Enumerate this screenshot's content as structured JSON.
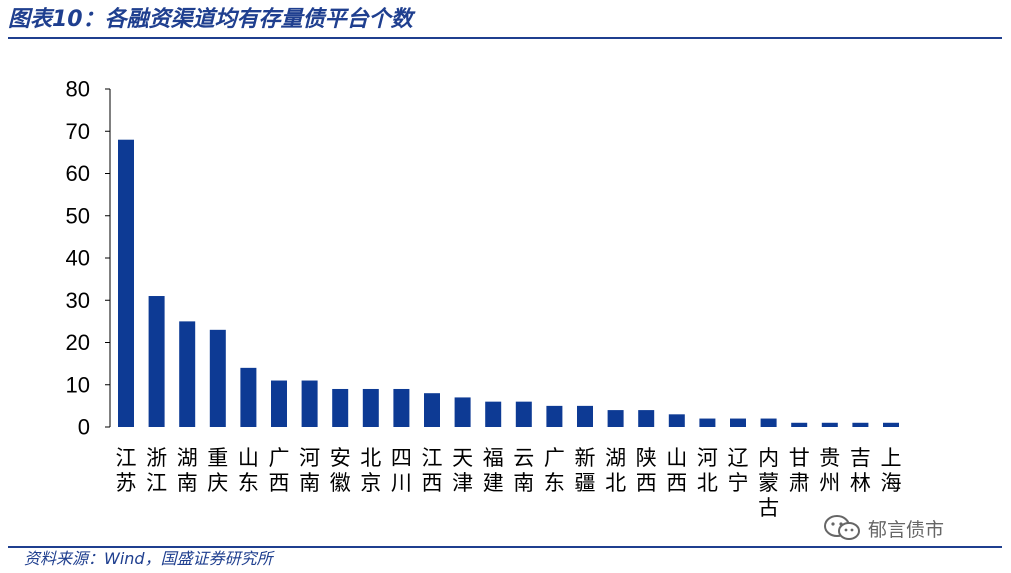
{
  "header": {
    "title": "图表10：各融资渠道均有存量债平台个数"
  },
  "footer": {
    "source": "资料来源：Wind，国盛证券研究所",
    "watermark": "郁言债市",
    "watermark_icon": "wechat-icon"
  },
  "colors": {
    "bar": "#0d3a94",
    "title": "#1f3f8f",
    "axis": "#000000"
  },
  "chart_data": {
    "type": "bar",
    "title": "",
    "xlabel": "",
    "ylabel": "",
    "ylim": [
      0,
      80
    ],
    "yticks": [
      0,
      10,
      20,
      30,
      40,
      50,
      60,
      70,
      80
    ],
    "grid": false,
    "legend": "none",
    "categories": [
      "江苏",
      "浙江",
      "湖南",
      "重庆",
      "山东",
      "广西",
      "河南",
      "安徽",
      "北京",
      "四川",
      "江西",
      "天津",
      "福建",
      "云南",
      "广东",
      "新疆",
      "湖北",
      "陕西",
      "山西",
      "河北",
      "辽宁",
      "内蒙古",
      "甘肃",
      "贵州",
      "吉林",
      "上海"
    ],
    "values": [
      68,
      31,
      25,
      23,
      14,
      11,
      11,
      9,
      9,
      9,
      8,
      7,
      6,
      6,
      5,
      5,
      4,
      4,
      3,
      2,
      2,
      2,
      1,
      1,
      1,
      1
    ]
  }
}
